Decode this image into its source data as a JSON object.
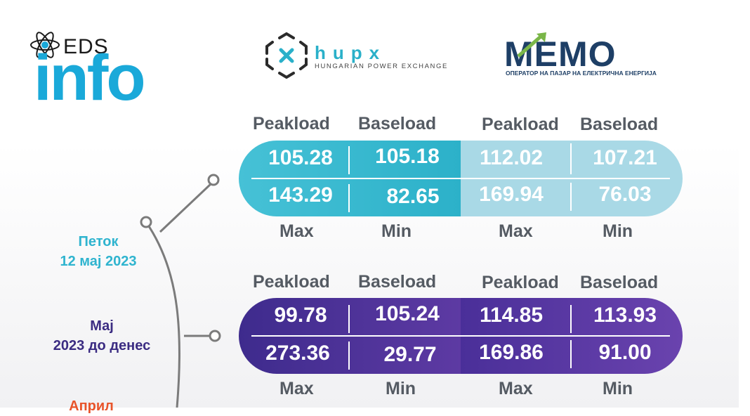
{
  "logos": {
    "eds": {
      "label": "EDS",
      "info": "info"
    },
    "hupx": {
      "name": "hupx",
      "subtitle": "HUNGARIAN POWER EXCHANGE"
    },
    "memo": {
      "name": "MEMO",
      "subtitle": "ОПЕРАТОР НА ПАЗАР НА ЕЛЕКТРИЧНА ЕНЕРГИЈА"
    }
  },
  "columns": {
    "peakload": "Peakload",
    "baseload": "Baseload",
    "max": "Max",
    "min": "Min"
  },
  "rows": [
    {
      "date_line1": "Петок",
      "date_line2": "12 мај 2023",
      "hupx": {
        "peakload": "105.28",
        "baseload": "105.18",
        "max": "143.29",
        "min": "82.65"
      },
      "memo": {
        "peakload": "112.02",
        "baseload": "107.21",
        "max": "169.94",
        "min": "76.03"
      }
    },
    {
      "date_line1": "Мај",
      "date_line2": "2023 до денес",
      "hupx": {
        "peakload": "99.78",
        "baseload": "105.24",
        "max": "273.36",
        "min": "29.77"
      },
      "memo": {
        "peakload": "114.85",
        "baseload": "113.93",
        "max": "169.86",
        "min": "91.00"
      }
    },
    {
      "date_line1": "Април"
    }
  ],
  "colors": {
    "row1": "#2cb1c9",
    "row2": "#4a2f99",
    "row3": "#e8542a",
    "eds_blue": "#1aa9d9",
    "memo_navy": "#1e3f66"
  }
}
